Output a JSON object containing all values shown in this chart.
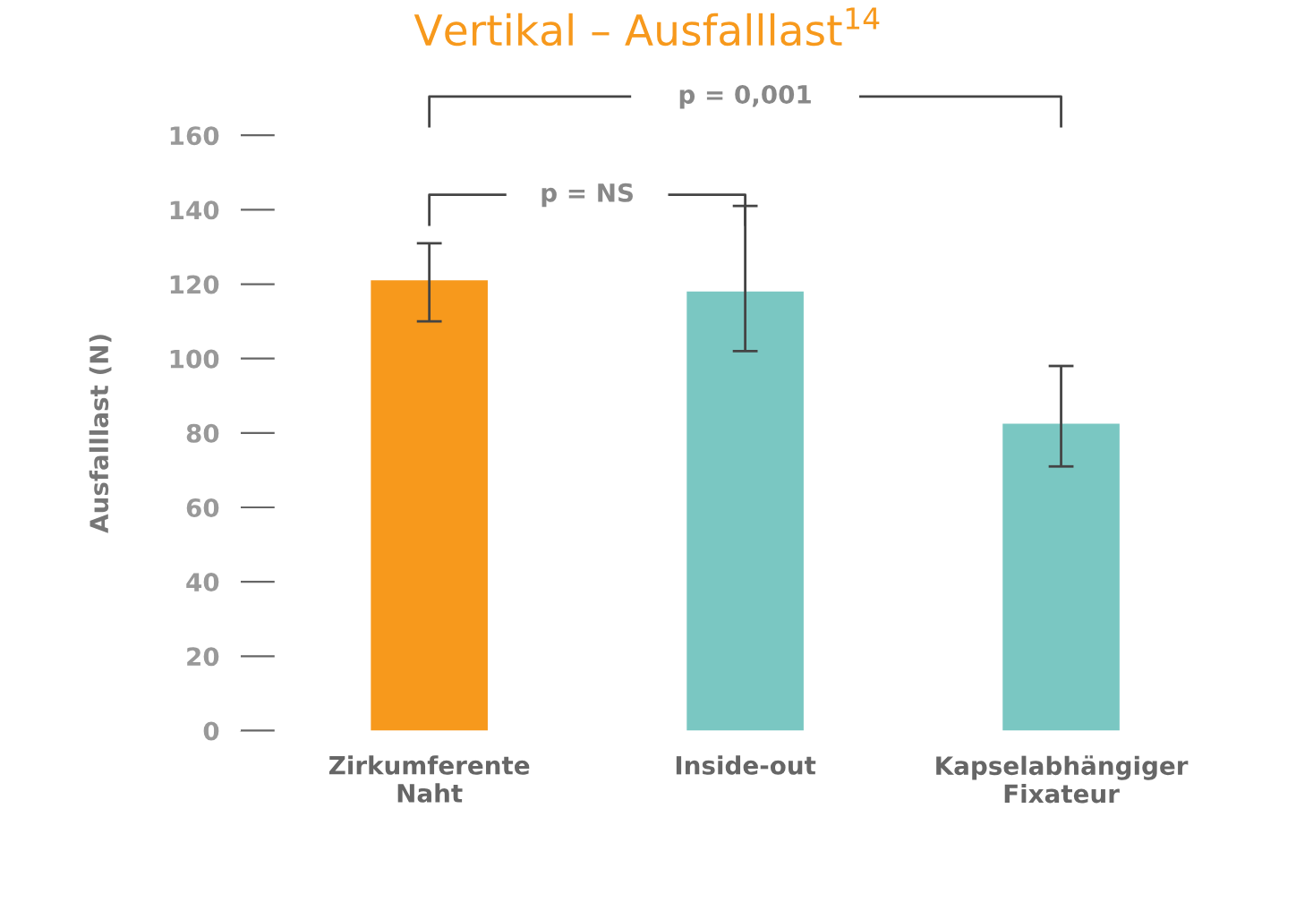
{
  "chart_data": {
    "type": "bar",
    "title": "Vertikal – Ausfalllast$^{14}$",
    "ylabel": "Ausfalllast (N)",
    "categories": [
      "Zirkumferente\nNaht",
      "Inside-out",
      "Kapselabhängiger\nFixateur"
    ],
    "values": [
      121,
      118,
      82.5
    ],
    "colors": [
      "#f7991c",
      "#7ac7c2",
      "#7ac7c2"
    ],
    "errors": [
      [
        110,
        131
      ],
      [
        102,
        141
      ],
      [
        71,
        98
      ]
    ],
    "ylim": [
      0,
      160
    ],
    "yticks": [
      0,
      20,
      40,
      60,
      80,
      100,
      120,
      140,
      160
    ],
    "annotations": [
      "p = NS",
      "p = 0,001"
    ],
    "grid": false,
    "legend": false
  }
}
